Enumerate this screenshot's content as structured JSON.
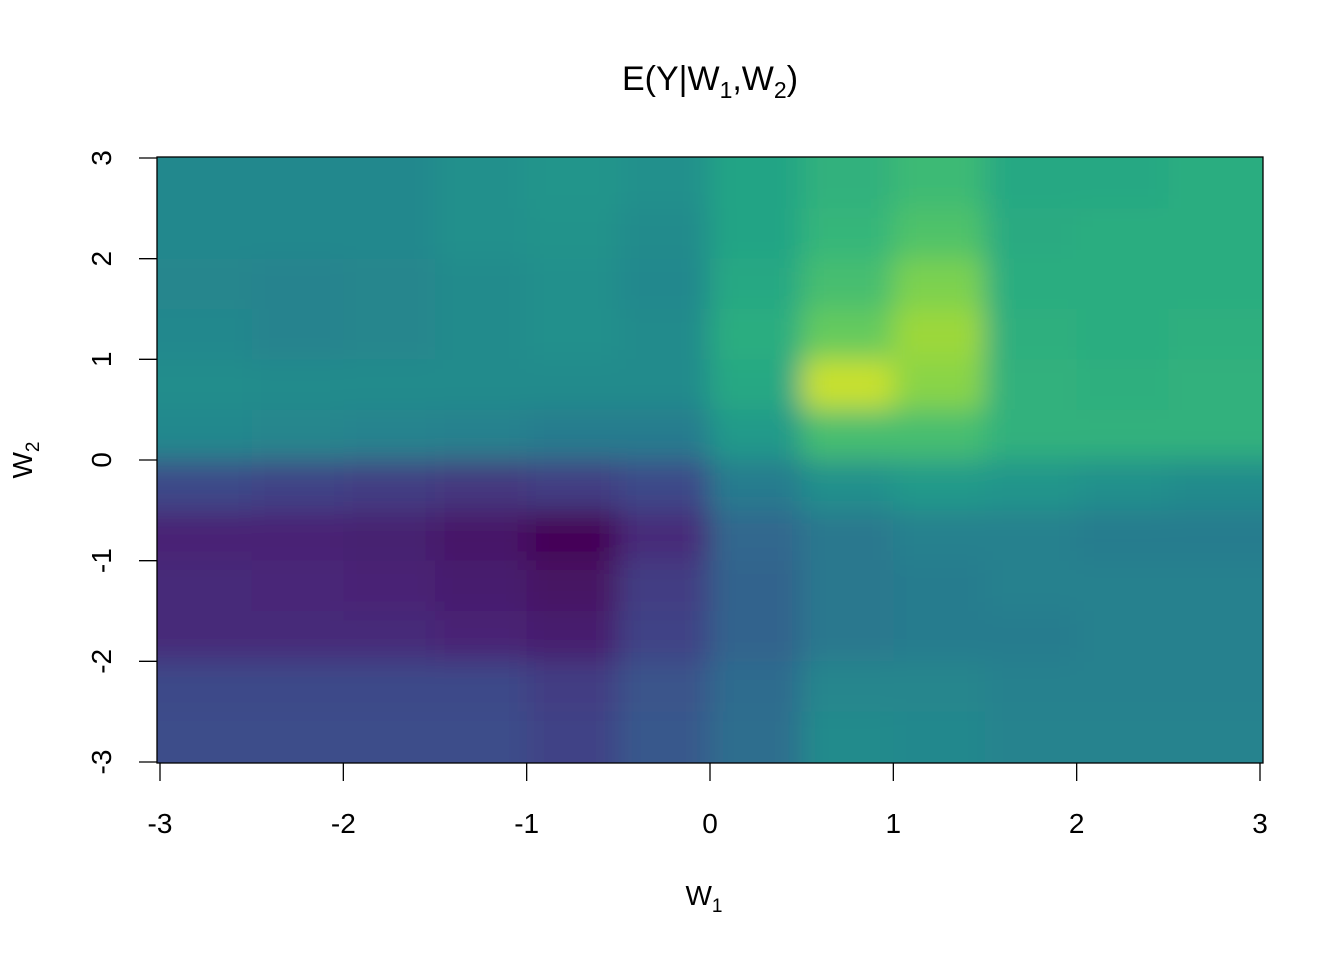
{
  "chart_data": {
    "type": "heatmap",
    "title": {
      "main": "E(Y|W",
      "sub1": "1",
      "sep": ",W",
      "sub2": "2",
      "close": ")"
    },
    "xlabel": {
      "main": "W",
      "sub": "1"
    },
    "ylabel": {
      "main": "W",
      "sub": "2"
    },
    "xlim": [
      -3,
      3
    ],
    "ylim": [
      -3,
      3
    ],
    "xticks": [
      "-3",
      "-2",
      "-1",
      "0",
      "1",
      "2",
      "3"
    ],
    "yticks": [
      "-3",
      "-2",
      "-1",
      "0",
      "1",
      "2",
      "3"
    ],
    "colormap": "viridis",
    "grid": false,
    "legend": "none",
    "x_centers": [
      -2.75,
      -2.25,
      -1.75,
      -1.25,
      -0.75,
      -0.25,
      0.25,
      0.75,
      1.25,
      1.75,
      2.25,
      2.75
    ],
    "y_centers": [
      2.75,
      2.25,
      1.75,
      1.25,
      0.75,
      0.25,
      -0.25,
      -0.75,
      -1.25,
      -1.75,
      -2.25,
      -2.75
    ],
    "z_relative": [
      [
        0.47,
        0.47,
        0.47,
        0.5,
        0.52,
        0.5,
        0.58,
        0.64,
        0.68,
        0.6,
        0.6,
        0.62
      ],
      [
        0.47,
        0.47,
        0.47,
        0.5,
        0.51,
        0.48,
        0.58,
        0.66,
        0.72,
        0.61,
        0.62,
        0.62
      ],
      [
        0.46,
        0.45,
        0.46,
        0.48,
        0.5,
        0.47,
        0.6,
        0.7,
        0.8,
        0.62,
        0.62,
        0.62
      ],
      [
        0.47,
        0.45,
        0.46,
        0.48,
        0.5,
        0.48,
        0.62,
        0.76,
        0.85,
        0.63,
        0.62,
        0.63
      ],
      [
        0.49,
        0.48,
        0.48,
        0.48,
        0.48,
        0.48,
        0.6,
        0.92,
        0.82,
        0.64,
        0.63,
        0.64
      ],
      [
        0.47,
        0.46,
        0.45,
        0.44,
        0.42,
        0.42,
        0.54,
        0.7,
        0.7,
        0.64,
        0.64,
        0.64
      ],
      [
        0.22,
        0.2,
        0.18,
        0.16,
        0.18,
        0.22,
        0.42,
        0.5,
        0.54,
        0.52,
        0.5,
        0.48
      ],
      [
        0.1,
        0.1,
        0.09,
        0.06,
        0.01,
        0.12,
        0.33,
        0.4,
        0.44,
        0.44,
        0.42,
        0.42
      ],
      [
        0.12,
        0.11,
        0.1,
        0.08,
        0.05,
        0.18,
        0.32,
        0.4,
        0.42,
        0.44,
        0.44,
        0.44
      ],
      [
        0.12,
        0.12,
        0.12,
        0.1,
        0.08,
        0.2,
        0.32,
        0.4,
        0.42,
        0.42,
        0.44,
        0.44
      ],
      [
        0.22,
        0.22,
        0.22,
        0.22,
        0.18,
        0.26,
        0.35,
        0.46,
        0.46,
        0.44,
        0.44,
        0.44
      ],
      [
        0.24,
        0.24,
        0.24,
        0.24,
        0.2,
        0.28,
        0.36,
        0.48,
        0.47,
        0.45,
        0.45,
        0.45
      ]
    ]
  }
}
